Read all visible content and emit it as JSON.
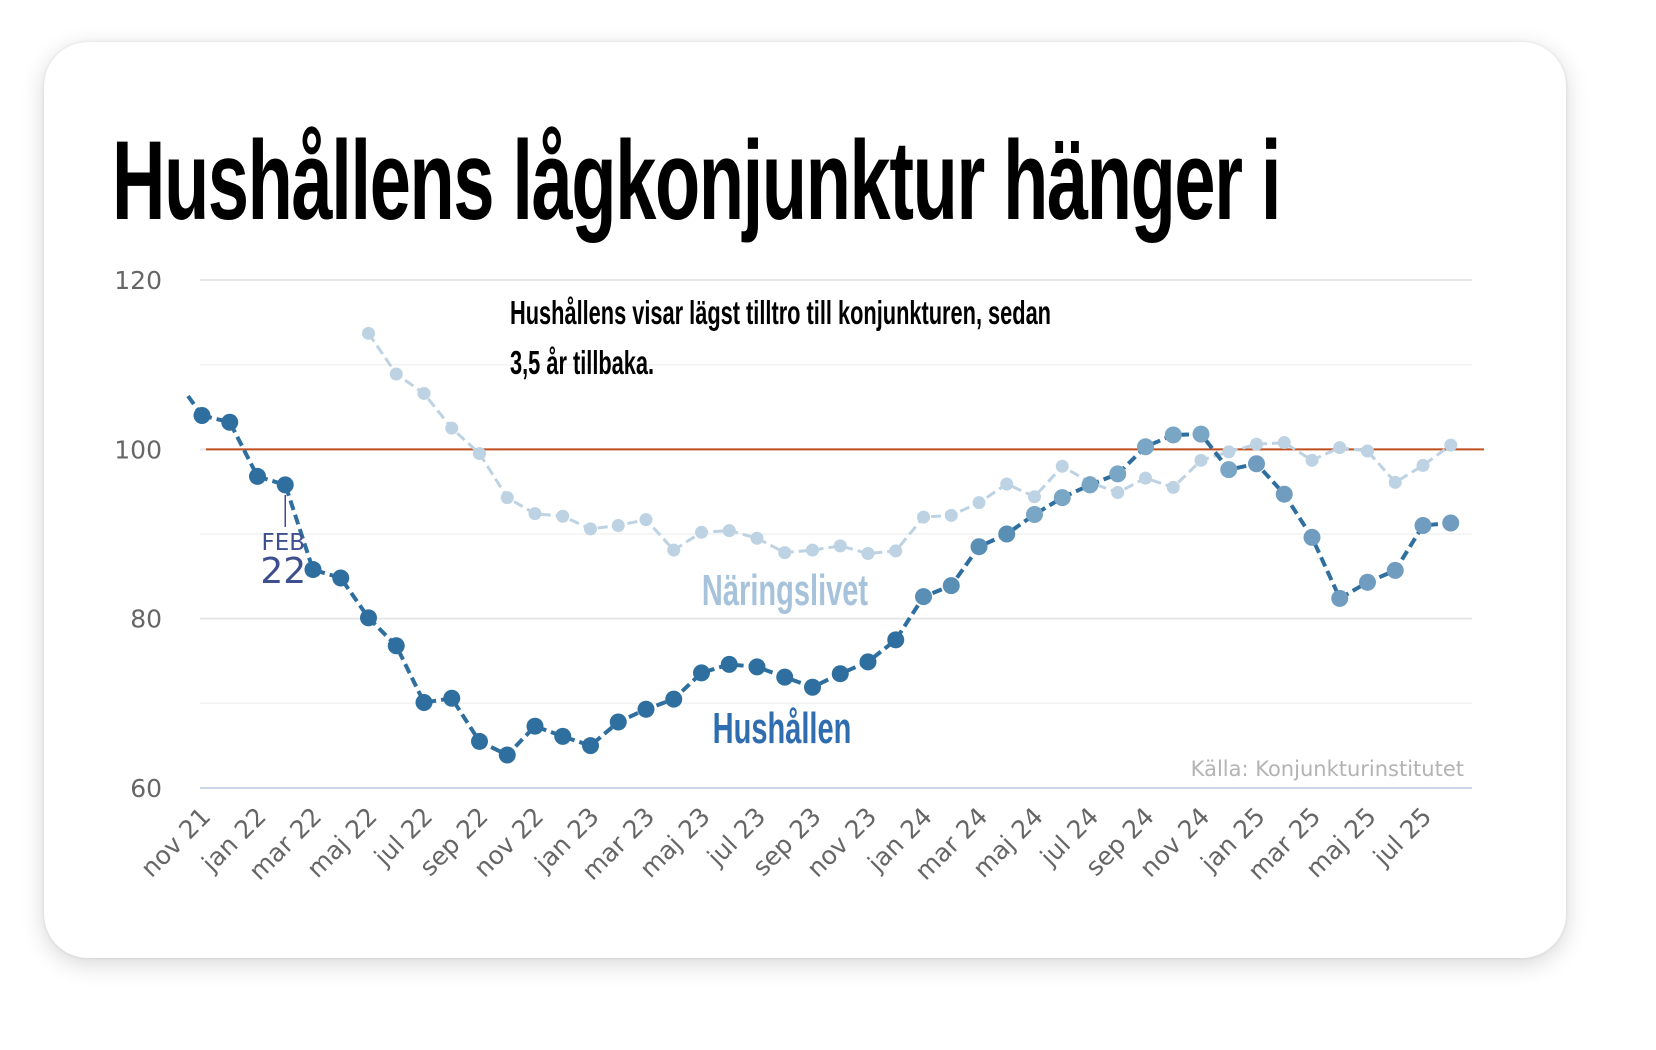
{
  "title": "Hushållens lågkonjunktur hänger i",
  "chart_data": {
    "type": "line",
    "annotation": "Hushållens visar lägst tilltro till konjunkturen, sedan 3,5 år tillbaka.",
    "source": "Källa: Konjunkturinstitutet",
    "ylim": [
      60,
      120
    ],
    "yticks": [
      60,
      80,
      100,
      120
    ],
    "reference_line": 100,
    "xtick_labels": [
      "nov 21",
      "jan 22",
      "mar 22",
      "maj 22",
      "jul 22",
      "sep 22",
      "nov 22",
      "jan 23",
      "mar 23",
      "maj 23",
      "jul 23",
      "sep 23",
      "nov 23",
      "jan 24",
      "mar 24",
      "maj 24",
      "jul 24",
      "sep 24",
      "nov 24",
      "jan 25",
      "mar 25",
      "maj 25",
      "jul 25"
    ],
    "x": [
      "2021-11",
      "2021-12",
      "2022-01",
      "2022-02",
      "2022-03",
      "2022-04",
      "2022-05",
      "2022-06",
      "2022-07",
      "2022-08",
      "2022-09",
      "2022-10",
      "2022-11",
      "2022-12",
      "2023-01",
      "2023-02",
      "2023-03",
      "2023-04",
      "2023-05",
      "2023-06",
      "2023-07",
      "2023-08",
      "2023-09",
      "2023-10",
      "2023-11",
      "2023-12",
      "2024-01",
      "2024-02",
      "2024-03",
      "2024-04",
      "2024-05",
      "2024-06",
      "2024-07",
      "2024-08",
      "2024-09",
      "2024-10",
      "2024-11",
      "2024-12",
      "2025-01",
      "2025-02",
      "2025-03",
      "2025-04",
      "2025-05",
      "2025-06",
      "2025-07",
      "2025-08"
    ],
    "callout": {
      "month": "FEB",
      "year": "22",
      "x": "2022-02"
    },
    "grid": true,
    "series": [
      {
        "name": "Hushållen",
        "color": "#2f6f9f",
        "label_color": "#2f6db0",
        "values": [
          104.0,
          103.2,
          96.8,
          95.8,
          85.8,
          84.8,
          80.1,
          76.8,
          70.1,
          70.6,
          65.5,
          63.9,
          67.3,
          66.1,
          65.0,
          67.8,
          69.3,
          70.5,
          73.6,
          74.6,
          74.3,
          73.1,
          71.9,
          73.5,
          74.9,
          77.5,
          82.6,
          83.9,
          88.5,
          90.0,
          92.3,
          94.3,
          95.8,
          97.1,
          100.3,
          101.7,
          101.8,
          97.6,
          98.3,
          94.7,
          89.6,
          82.4,
          84.3,
          85.7,
          91.0,
          91.3
        ]
      },
      {
        "name": "Näringslivet",
        "color": "#bdd2e2",
        "label_color": "#a7c3dc",
        "values": [
          null,
          null,
          null,
          null,
          null,
          null,
          113.7,
          108.9,
          106.6,
          102.5,
          99.5,
          94.3,
          92.4,
          92.1,
          90.6,
          91.0,
          91.7,
          88.1,
          90.2,
          90.4,
          89.5,
          87.8,
          88.1,
          88.6,
          87.7,
          88.0,
          92.0,
          92.2,
          93.7,
          95.9,
          94.4,
          98.0,
          96.1,
          94.9,
          96.6,
          95.5,
          98.7,
          99.7,
          100.6,
          100.8,
          98.7,
          100.2,
          99.8,
          96.1,
          98.1,
          100.5
        ]
      }
    ]
  }
}
